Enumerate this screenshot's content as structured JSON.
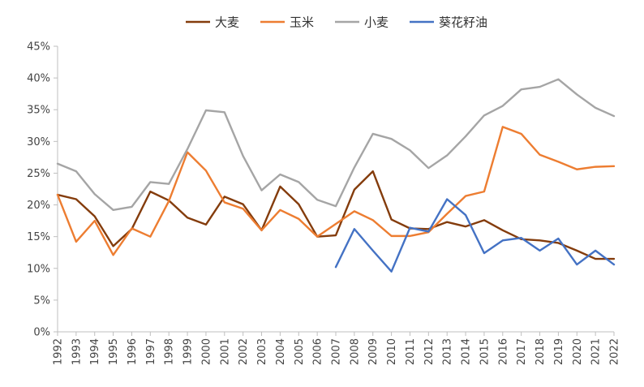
{
  "chart_data": {
    "type": "line",
    "title": "",
    "xlabel": "",
    "ylabel": "",
    "ylim": [
      0,
      45
    ],
    "y_ticks": [
      "0%",
      "5%",
      "10%",
      "15%",
      "20%",
      "25%",
      "30%",
      "35%",
      "40%",
      "45%"
    ],
    "y_tick_values": [
      0,
      5,
      10,
      15,
      20,
      25,
      30,
      35,
      40,
      45
    ],
    "grid": false,
    "legend_position": "top",
    "categories": [
      "1992",
      "1993",
      "1994",
      "1995",
      "1996",
      "1997",
      "1998",
      "1999",
      "2000",
      "2001",
      "2002",
      "2003",
      "2004",
      "2005",
      "2006",
      "2007",
      "2008",
      "2009",
      "2010",
      "2011",
      "2012",
      "2013",
      "2014",
      "2015",
      "2016",
      "2017",
      "2018",
      "2019",
      "2020",
      "2021",
      "2022"
    ],
    "series": [
      {
        "name": "大麦",
        "color": "#843c0c",
        "values": [
          21.6,
          20.9,
          18.2,
          13.5,
          16.2,
          22.1,
          20.7,
          18.0,
          16.9,
          21.3,
          20.1,
          16.0,
          22.9,
          20.1,
          15.0,
          15.2,
          22.4,
          25.3,
          17.7,
          16.3,
          16.2,
          17.3,
          16.6,
          17.6,
          16.0,
          14.6,
          14.4,
          14.0,
          12.8,
          11.5,
          11.5
        ]
      },
      {
        "name": "玉米",
        "color": "#ed7d31",
        "values": [
          21.6,
          14.2,
          17.5,
          12.1,
          16.3,
          15.0,
          20.6,
          28.3,
          25.4,
          20.4,
          19.4,
          16.0,
          19.2,
          17.8,
          15.0,
          17.0,
          19.0,
          17.6,
          15.1,
          15.1,
          15.7,
          18.6,
          21.4,
          22.1,
          32.3,
          31.2,
          27.9,
          26.8,
          25.6,
          26.0,
          26.1
        ]
      },
      {
        "name": "小麦",
        "color": "#a5a5a5",
        "values": [
          26.5,
          25.3,
          21.7,
          19.2,
          19.7,
          23.6,
          23.3,
          28.8,
          34.9,
          34.6,
          27.7,
          22.3,
          24.8,
          23.6,
          20.8,
          19.8,
          25.9,
          31.2,
          30.4,
          28.6,
          25.8,
          27.8,
          30.8,
          34.1,
          35.6,
          38.2,
          38.6,
          39.8,
          37.4,
          35.3,
          34.0
        ]
      },
      {
        "name": "葵花籽油",
        "color": "#4472c4",
        "values": [
          null,
          null,
          null,
          null,
          null,
          null,
          null,
          null,
          null,
          null,
          null,
          null,
          null,
          null,
          null,
          10.2,
          16.2,
          12.8,
          9.5,
          16.4,
          15.8,
          20.9,
          18.4,
          12.4,
          14.4,
          14.8,
          12.8,
          14.7,
          10.6,
          12.8,
          10.6
        ]
      }
    ]
  }
}
